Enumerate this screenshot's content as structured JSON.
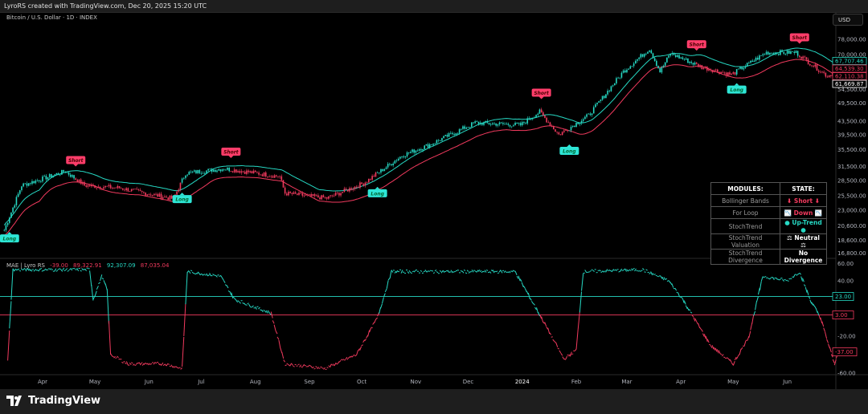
{
  "header": {
    "title": "LyroRS created with TradingView.com, Dec 20, 2025 15:20 UTC"
  },
  "symbol": {
    "label": "Bitcoin / U.S. Dollar · 1D · INDEX"
  },
  "currency_button": "USD",
  "footer": {
    "brand": "TradingView"
  },
  "colors": {
    "teal": "#26d9c4",
    "red": "#f23a5e",
    "long_bg": "#2ee6d6",
    "short_bg": "#ff3d6a"
  },
  "table": {
    "headers": [
      "MODULES:",
      "STATE:"
    ],
    "rows": [
      {
        "module": "Bollinger Bands",
        "state": "⬇ Short ⬇",
        "color": "#f23a5e"
      },
      {
        "module": "For Loop",
        "state": "📉 Down 📉",
        "color": "#f23a5e"
      },
      {
        "module": "StochTrend",
        "state": "● Up-Trend ●",
        "color": "#26d9c4"
      },
      {
        "module": "StochTrend Valuation",
        "state": "⚖ Neutral ⚖",
        "color": "#ffffff"
      },
      {
        "module": "StochTrend Divergence",
        "state": "No Divergence",
        "color": "#ffffff"
      }
    ]
  },
  "oscillator_legend": {
    "name": "MAE | Lyro RS",
    "v1": "-39.00",
    "v2": "89,322.91",
    "v3": "92,307.09",
    "v4": "87,035.04"
  },
  "chart_data": [
    {
      "type": "candlestick",
      "scale": "log",
      "y_ticks": [
        78000,
        70000,
        54500,
        49500,
        43500,
        39500,
        35500,
        31500,
        28500,
        25500,
        23000,
        20600,
        18600,
        16800
      ],
      "price_labels": [
        {
          "value": "67,707.46",
          "color": "#26d9c4"
        },
        {
          "value": "64,539.30",
          "color": "#f23a5e"
        },
        {
          "value": "62,110.38",
          "color": "#f23a5e"
        },
        {
          "value": "61,669.87",
          "color": "#ffffff"
        }
      ],
      "x_ticks": [
        [
          "2023-04-01",
          "Apr"
        ],
        [
          "2023-05-01",
          "May"
        ],
        [
          "2023-06-01",
          "Jun"
        ],
        [
          "2023-07-01",
          "Jul"
        ],
        [
          "2023-08-01",
          "Aug"
        ],
        [
          "2023-09-01",
          "Sep"
        ],
        [
          "2023-10-01",
          "Oct"
        ],
        [
          "2023-11-01",
          "Nov"
        ],
        [
          "2023-12-01",
          "Dec"
        ],
        [
          "2024-01-01",
          "2024"
        ],
        [
          "2024-02-01",
          "Feb"
        ],
        [
          "2024-03-01",
          "Mar"
        ],
        [
          "2024-04-01",
          "Apr"
        ],
        [
          "2024-05-01",
          "May"
        ],
        [
          "2024-06-01",
          "Jun"
        ]
      ],
      "close_keypoints": [
        [
          "2023-03-10",
          20000
        ],
        [
          "2023-03-20",
          27500
        ],
        [
          "2023-04-14",
          30400
        ],
        [
          "2023-04-25",
          27500
        ],
        [
          "2023-05-15",
          27000
        ],
        [
          "2023-06-15",
          25000
        ],
        [
          "2023-06-22",
          30000
        ],
        [
          "2023-07-14",
          31000
        ],
        [
          "2023-08-15",
          29300
        ],
        [
          "2023-08-18",
          26000
        ],
        [
          "2023-09-11",
          25100
        ],
        [
          "2023-10-02",
          27900
        ],
        [
          "2023-10-24",
          34000
        ],
        [
          "2023-11-09",
          36800
        ],
        [
          "2023-12-05",
          43000
        ],
        [
          "2023-12-31",
          42300
        ],
        [
          "2024-01-11",
          46500
        ],
        [
          "2024-01-22",
          39500
        ],
        [
          "2024-02-08",
          45300
        ],
        [
          "2024-02-28",
          62000
        ],
        [
          "2024-03-14",
          73000
        ],
        [
          "2024-03-20",
          62000
        ],
        [
          "2024-03-26",
          70500
        ],
        [
          "2024-04-13",
          64000
        ],
        [
          "2024-04-30",
          60600
        ],
        [
          "2024-05-20",
          71000
        ],
        [
          "2024-06-06",
          71000
        ],
        [
          "2024-06-24",
          60000
        ],
        [
          "2024-06-28",
          61669.87
        ]
      ],
      "signals": [
        {
          "date": "2023-03-13",
          "label": "Long"
        },
        {
          "date": "2023-04-20",
          "label": "Short"
        },
        {
          "date": "2023-06-20",
          "label": "Long"
        },
        {
          "date": "2023-07-18",
          "label": "Short"
        },
        {
          "date": "2023-10-10",
          "label": "Long"
        },
        {
          "date": "2024-01-12",
          "label": "Short"
        },
        {
          "date": "2024-01-28",
          "label": "Long"
        },
        {
          "date": "2024-04-10",
          "label": "Short"
        },
        {
          "date": "2024-05-03",
          "label": "Long"
        },
        {
          "date": "2024-06-08",
          "label": "Short"
        }
      ]
    },
    {
      "type": "line",
      "ylim": [
        -60,
        60
      ],
      "y_ticks": [
        60,
        40,
        -20,
        -60
      ],
      "levels": [
        {
          "value": 23,
          "label": "23.00",
          "color": "#26d9c4"
        },
        {
          "value": 3,
          "label": "3.00",
          "color": "#f23a5e"
        }
      ],
      "last_label": "-37.00",
      "points": [
        [
          "2023-03-12",
          -45
        ],
        [
          "2023-03-15",
          52
        ],
        [
          "2023-04-28",
          52
        ],
        [
          "2023-04-30",
          20
        ],
        [
          "2023-05-05",
          45
        ],
        [
          "2023-05-08",
          30
        ],
        [
          "2023-05-10",
          -40
        ],
        [
          "2023-05-20",
          -50
        ],
        [
          "2023-06-10",
          -50
        ],
        [
          "2023-06-20",
          -55
        ],
        [
          "2023-06-23",
          50
        ],
        [
          "2023-07-12",
          45
        ],
        [
          "2023-07-20",
          20
        ],
        [
          "2023-08-10",
          5
        ],
        [
          "2023-08-18",
          -50
        ],
        [
          "2023-09-10",
          -55
        ],
        [
          "2023-09-28",
          -40
        ],
        [
          "2023-10-10",
          0
        ],
        [
          "2023-10-18",
          50
        ],
        [
          "2023-12-28",
          50
        ],
        [
          "2024-01-12",
          0
        ],
        [
          "2024-01-25",
          -45
        ],
        [
          "2024-02-01",
          -35
        ],
        [
          "2024-02-05",
          50
        ],
        [
          "2024-03-10",
          52
        ],
        [
          "2024-03-25",
          40
        ],
        [
          "2024-04-02",
          20
        ],
        [
          "2024-04-10",
          -5
        ],
        [
          "2024-04-18",
          -30
        ],
        [
          "2024-05-01",
          -50
        ],
        [
          "2024-05-10",
          -20
        ],
        [
          "2024-05-18",
          45
        ],
        [
          "2024-06-01",
          40
        ],
        [
          "2024-06-08",
          50
        ],
        [
          "2024-06-14",
          20
        ],
        [
          "2024-06-20",
          0
        ],
        [
          "2024-06-28",
          -50
        ],
        [
          "2024-06-30",
          -37
        ]
      ]
    }
  ]
}
